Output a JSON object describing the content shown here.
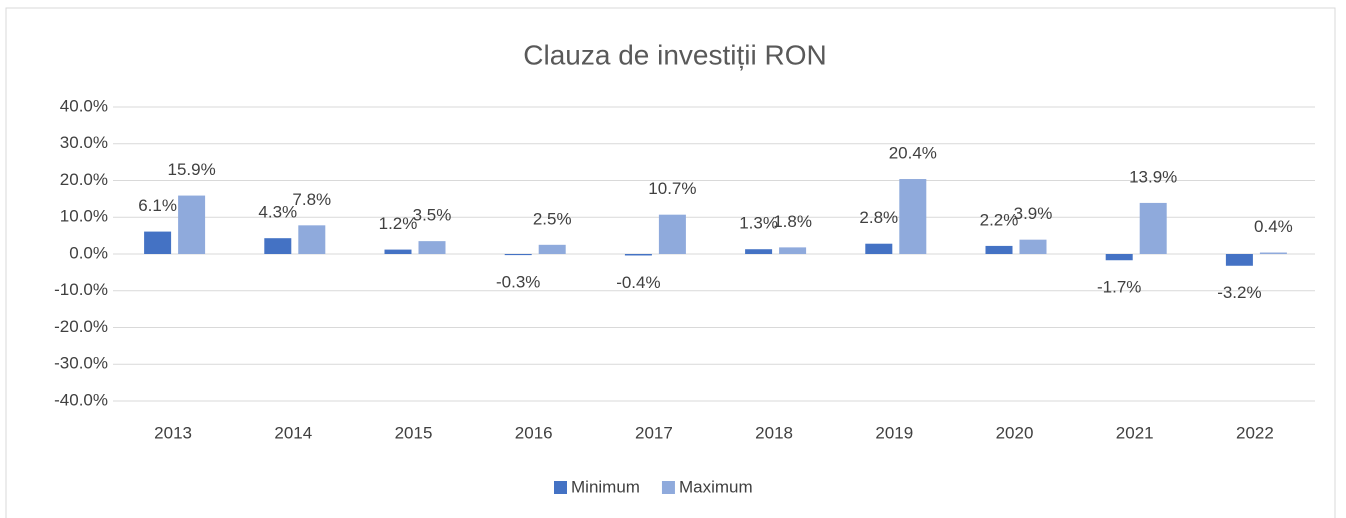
{
  "chart_data": {
    "type": "bar",
    "title": "Clauza de investiții RON",
    "categories": [
      "2013",
      "2014",
      "2015",
      "2016",
      "2017",
      "2018",
      "2019",
      "2020",
      "2021",
      "2022"
    ],
    "series": [
      {
        "name": "Minimum",
        "color": "#4472c4",
        "values": [
          6.1,
          4.3,
          1.2,
          -0.3,
          -0.4,
          1.3,
          2.8,
          2.2,
          -1.7,
          -3.2
        ],
        "value_labels": [
          "6.1%",
          "4.3%",
          "1.2%",
          "-0.3%",
          "-0.4%",
          "1.3%",
          "2.8%",
          "2.2%",
          "-1.7%",
          "-3.2%"
        ]
      },
      {
        "name": "Maximum",
        "color": "#8faadc",
        "values": [
          15.9,
          7.8,
          3.5,
          2.5,
          10.7,
          1.8,
          20.4,
          3.9,
          13.9,
          0.4
        ],
        "value_labels": [
          "15.9%",
          "7.8%",
          "3.5%",
          "2.5%",
          "10.7%",
          "1.8%",
          "20.4%",
          "3.9%",
          "13.9%",
          "0.4%"
        ]
      }
    ],
    "ylim": [
      -40,
      40
    ],
    "yticks": [
      {
        "value": -40,
        "label": "-40.0%"
      },
      {
        "value": -30,
        "label": "-30.0%"
      },
      {
        "value": -20,
        "label": "-20.0%"
      },
      {
        "value": -10,
        "label": "-10.0%"
      },
      {
        "value": 0,
        "label": "0.0%"
      },
      {
        "value": 10,
        "label": "10.0%"
      },
      {
        "value": 20,
        "label": "20.0%"
      },
      {
        "value": 30,
        "label": "30.0%"
      },
      {
        "value": 40,
        "label": "40.0%"
      }
    ],
    "grid": true,
    "legend": "bottom"
  }
}
